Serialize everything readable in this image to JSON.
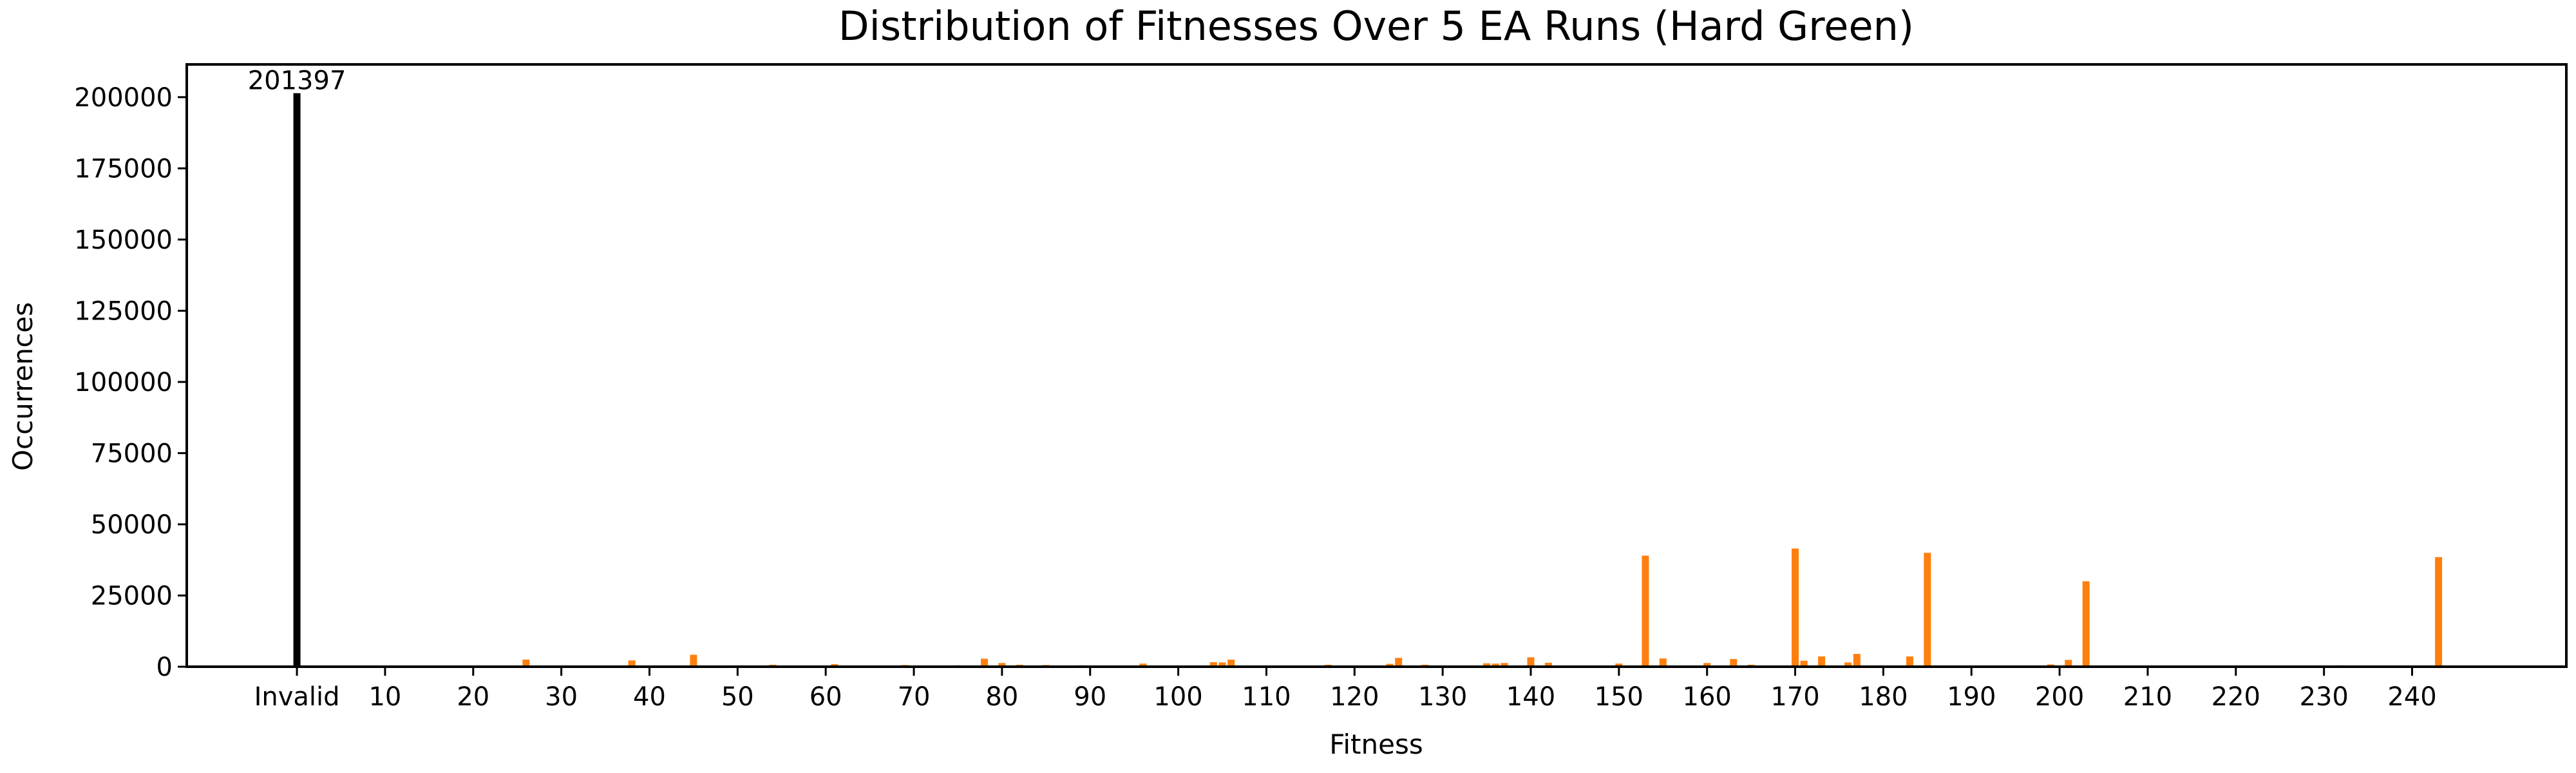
{
  "chart_data": {
    "type": "bar",
    "title": "Distribution of Fitnesses Over 5 EA Runs (Hard Green)",
    "xlabel": "Fitness",
    "ylabel": "Occurrences",
    "ylim": [
      0,
      211500
    ],
    "xlim": [
      -12.5,
      257.5
    ],
    "y_ticks": [
      0,
      25000,
      50000,
      75000,
      100000,
      125000,
      150000,
      175000,
      200000
    ],
    "x_ticks": [
      {
        "x": 0,
        "label": "Invalid"
      },
      {
        "x": 10,
        "label": "10"
      },
      {
        "x": 20,
        "label": "20"
      },
      {
        "x": 30,
        "label": "30"
      },
      {
        "x": 40,
        "label": "40"
      },
      {
        "x": 50,
        "label": "50"
      },
      {
        "x": 60,
        "label": "60"
      },
      {
        "x": 70,
        "label": "70"
      },
      {
        "x": 80,
        "label": "80"
      },
      {
        "x": 90,
        "label": "90"
      },
      {
        "x": 100,
        "label": "100"
      },
      {
        "x": 110,
        "label": "110"
      },
      {
        "x": 120,
        "label": "120"
      },
      {
        "x": 130,
        "label": "130"
      },
      {
        "x": 140,
        "label": "140"
      },
      {
        "x": 150,
        "label": "150"
      },
      {
        "x": 160,
        "label": "160"
      },
      {
        "x": 170,
        "label": "170"
      },
      {
        "x": 180,
        "label": "180"
      },
      {
        "x": 190,
        "label": "190"
      },
      {
        "x": 200,
        "label": "200"
      },
      {
        "x": 210,
        "label": "210"
      },
      {
        "x": 220,
        "label": "220"
      },
      {
        "x": 230,
        "label": "230"
      },
      {
        "x": 240,
        "label": "240"
      }
    ],
    "grid": false,
    "colors": {
      "invalid": "#000000",
      "valid": "#ff7f0e"
    },
    "series": [
      {
        "values_kind": "invalid",
        "points": [
          {
            "x": 0,
            "y": 201397
          }
        ]
      },
      {
        "values_kind": "valid",
        "points": [
          {
            "x": 26,
            "y": 2500
          },
          {
            "x": 38,
            "y": 2200
          },
          {
            "x": 45,
            "y": 4200
          },
          {
            "x": 50,
            "y": 500
          },
          {
            "x": 54,
            "y": 700
          },
          {
            "x": 61,
            "y": 900
          },
          {
            "x": 69,
            "y": 600
          },
          {
            "x": 75,
            "y": 500
          },
          {
            "x": 78,
            "y": 2800
          },
          {
            "x": 80,
            "y": 1300
          },
          {
            "x": 82,
            "y": 700
          },
          {
            "x": 85,
            "y": 600
          },
          {
            "x": 89,
            "y": 500
          },
          {
            "x": 96,
            "y": 1100
          },
          {
            "x": 104,
            "y": 1600
          },
          {
            "x": 105,
            "y": 1500
          },
          {
            "x": 106,
            "y": 2500
          },
          {
            "x": 113,
            "y": 400
          },
          {
            "x": 117,
            "y": 700
          },
          {
            "x": 124,
            "y": 1000
          },
          {
            "x": 125,
            "y": 3100
          },
          {
            "x": 128,
            "y": 700
          },
          {
            "x": 135,
            "y": 1200
          },
          {
            "x": 136,
            "y": 1100
          },
          {
            "x": 137,
            "y": 1300
          },
          {
            "x": 140,
            "y": 3300
          },
          {
            "x": 142,
            "y": 1400
          },
          {
            "x": 150,
            "y": 1100
          },
          {
            "x": 153,
            "y": 39000
          },
          {
            "x": 155,
            "y": 2900
          },
          {
            "x": 160,
            "y": 1300
          },
          {
            "x": 163,
            "y": 2700
          },
          {
            "x": 165,
            "y": 700
          },
          {
            "x": 170,
            "y": 41500
          },
          {
            "x": 171,
            "y": 2100
          },
          {
            "x": 173,
            "y": 3600
          },
          {
            "x": 176,
            "y": 1500
          },
          {
            "x": 177,
            "y": 4500
          },
          {
            "x": 183,
            "y": 3600
          },
          {
            "x": 185,
            "y": 40000
          },
          {
            "x": 199,
            "y": 800
          },
          {
            "x": 201,
            "y": 2400
          },
          {
            "x": 203,
            "y": 30000
          },
          {
            "x": 232,
            "y": 500
          },
          {
            "x": 243,
            "y": 38500
          }
        ]
      }
    ],
    "annotations": [
      {
        "x": 0,
        "y": 201397,
        "text": "201397"
      }
    ]
  }
}
